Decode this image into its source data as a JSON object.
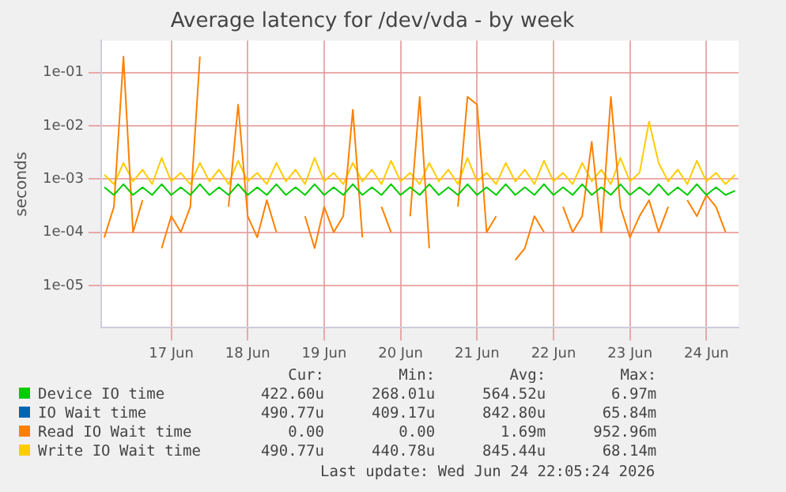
{
  "chart_data": {
    "type": "line",
    "title": "Average latency for /dev/vda - by week",
    "ylabel": "seconds",
    "x": [
      "2026-06-16T15:00",
      "2026-06-16T18:00",
      "2026-06-16T21:00",
      "2026-06-17T00:00",
      "2026-06-17T03:00",
      "2026-06-17T06:00",
      "2026-06-17T09:00",
      "2026-06-17T12:00",
      "2026-06-17T15:00",
      "2026-06-17T18:00",
      "2026-06-17T21:00",
      "2026-06-18T00:00",
      "2026-06-18T03:00",
      "2026-06-18T06:00",
      "2026-06-18T09:00",
      "2026-06-18T12:00",
      "2026-06-18T15:00",
      "2026-06-18T18:00",
      "2026-06-18T21:00",
      "2026-06-19T00:00",
      "2026-06-19T03:00",
      "2026-06-19T06:00",
      "2026-06-19T09:00",
      "2026-06-19T12:00",
      "2026-06-19T15:00",
      "2026-06-19T18:00",
      "2026-06-19T21:00",
      "2026-06-20T00:00",
      "2026-06-20T03:00",
      "2026-06-20T06:00",
      "2026-06-20T09:00",
      "2026-06-20T12:00",
      "2026-06-20T15:00",
      "2026-06-20T18:00",
      "2026-06-20T21:00",
      "2026-06-21T00:00",
      "2026-06-21T03:00",
      "2026-06-21T06:00",
      "2026-06-21T09:00",
      "2026-06-21T12:00",
      "2026-06-21T15:00",
      "2026-06-21T18:00",
      "2026-06-21T21:00",
      "2026-06-22T00:00",
      "2026-06-22T03:00",
      "2026-06-22T06:00",
      "2026-06-22T09:00",
      "2026-06-22T12:00",
      "2026-06-22T15:00",
      "2026-06-22T18:00",
      "2026-06-22T21:00",
      "2026-06-23T00:00",
      "2026-06-23T03:00",
      "2026-06-23T06:00",
      "2026-06-23T09:00",
      "2026-06-23T12:00",
      "2026-06-23T15:00",
      "2026-06-23T18:00",
      "2026-06-23T21:00",
      "2026-06-24T00:00",
      "2026-06-24T03:00",
      "2026-06-24T06:00",
      "2026-06-24T09:00",
      "2026-06-24T12:00",
      "2026-06-24T15:00",
      "2026-06-24T18:00",
      "2026-06-24T21:00"
    ],
    "series": [
      {
        "name": "Device IO time",
        "color": "#00cc00",
        "values": [
          0.0007,
          0.0005,
          0.0008,
          0.0005,
          0.0007,
          0.0005,
          0.0008,
          0.0005,
          0.0007,
          0.0005,
          0.0008,
          0.0005,
          0.0007,
          0.0005,
          0.0008,
          0.0005,
          0.0007,
          0.0005,
          0.0008,
          0.0005,
          0.0007,
          0.0005,
          0.0008,
          0.0005,
          0.0007,
          0.0005,
          0.0008,
          0.0005,
          0.0007,
          0.0005,
          0.0008,
          0.0005,
          0.0007,
          0.0005,
          0.0008,
          0.0005,
          0.0007,
          0.0005,
          0.0008,
          0.0005,
          0.0007,
          0.0005,
          0.0008,
          0.0005,
          0.0007,
          0.0005,
          0.0008,
          0.0005,
          0.0007,
          0.0005,
          0.0008,
          0.0005,
          0.0007,
          0.0005,
          0.0008,
          0.0005,
          0.0007,
          0.0005,
          0.0008,
          0.0005,
          0.0007,
          0.0005,
          0.0008,
          0.0005,
          0.0007,
          0.0005,
          0.0006
        ]
      },
      {
        "name": "IO Wait time",
        "color": "#0066b3",
        "values": [
          null,
          null,
          null,
          null,
          null,
          null,
          null,
          null,
          null,
          null,
          null,
          null,
          null,
          null,
          null,
          null,
          null,
          null,
          null,
          null,
          null,
          null,
          null,
          null,
          null,
          null,
          null,
          null,
          null,
          null,
          null,
          null,
          null,
          null,
          null,
          null,
          null,
          null,
          null,
          null,
          null,
          null,
          null,
          null,
          null,
          null,
          null,
          null,
          null,
          null,
          null,
          null,
          null,
          null,
          null,
          null,
          null,
          null,
          null,
          null,
          null,
          null,
          null,
          null,
          null,
          null,
          null
        ]
      },
      {
        "name": "Read IO Wait time",
        "color": "#ff8000",
        "values": [
          8e-05,
          0.0003,
          0.2,
          0.0001,
          0.0004,
          null,
          5e-05,
          0.0002,
          0.0001,
          0.0003,
          0.2,
          null,
          null,
          0.0003,
          0.025,
          0.0002,
          8e-05,
          0.0004,
          0.0001,
          null,
          null,
          0.0002,
          5e-05,
          0.0003,
          0.0001,
          0.0002,
          0.02,
          8e-05,
          null,
          0.0003,
          0.0001,
          null,
          0.0002,
          0.035,
          5e-05,
          null,
          null,
          0.0003,
          0.035,
          0.025,
          0.0001,
          0.0002,
          null,
          3e-05,
          5e-05,
          0.0002,
          0.0001,
          null,
          0.0003,
          0.0001,
          0.0002,
          0.005,
          0.0001,
          0.035,
          0.0003,
          8e-05,
          0.0002,
          0.0004,
          0.0001,
          0.0003,
          null,
          0.0004,
          0.0002,
          0.0005,
          0.0003,
          0.0001,
          null
        ]
      },
      {
        "name": "Write IO Wait time",
        "color": "#ffcc00",
        "values": [
          0.0012,
          0.0008,
          0.002,
          0.0009,
          0.0015,
          0.0008,
          0.0025,
          0.0009,
          0.0013,
          0.0008,
          0.002,
          0.0009,
          0.0015,
          0.0008,
          0.0022,
          0.0009,
          0.0013,
          0.0008,
          0.002,
          0.0009,
          0.0015,
          0.0008,
          0.0025,
          0.0009,
          0.0013,
          0.0008,
          0.002,
          0.0009,
          0.0015,
          0.0008,
          0.0022,
          0.0009,
          0.0013,
          0.0008,
          0.002,
          0.0009,
          0.0015,
          0.0008,
          0.0025,
          0.0009,
          0.0013,
          0.0008,
          0.002,
          0.0009,
          0.0015,
          0.0008,
          0.0022,
          0.0009,
          0.0013,
          0.0008,
          0.002,
          0.0009,
          0.0015,
          0.0008,
          0.0025,
          0.0009,
          0.0013,
          0.012,
          0.002,
          0.0009,
          0.0015,
          0.0008,
          0.0022,
          0.0009,
          0.0013,
          0.0008,
          0.0012
        ]
      }
    ],
    "log": "y",
    "xlim": [
      "2026-06-16T14:00",
      "2026-06-24T22:05"
    ],
    "xticks": [
      {
        "value": "2026-06-17T12:00",
        "label": "17 Jun"
      },
      {
        "value": "2026-06-18T12:00",
        "label": "18 Jun"
      },
      {
        "value": "2026-06-19T12:00",
        "label": "19 Jun"
      },
      {
        "value": "2026-06-20T12:00",
        "label": "20 Jun"
      },
      {
        "value": "2026-06-21T12:00",
        "label": "21 Jun"
      },
      {
        "value": "2026-06-22T12:00",
        "label": "22 Jun"
      },
      {
        "value": "2026-06-23T12:00",
        "label": "23 Jun"
      },
      {
        "value": "2026-06-24T12:00",
        "label": "24 Jun"
      }
    ],
    "ylim": [
      1.6e-06,
      0.4
    ],
    "yticks": [
      {
        "value": 1e-05,
        "label": "1e-05"
      },
      {
        "value": 0.0001,
        "label": "1e-04"
      },
      {
        "value": 0.001,
        "label": "1e-03"
      },
      {
        "value": 0.01,
        "label": "1e-02"
      },
      {
        "value": 0.1,
        "label": "1e-01"
      }
    ],
    "grid": true,
    "legend": "bottom",
    "annotations": [
      "Cur:",
      "Min:",
      "Avg:",
      "Max:",
      "422.60u",
      "268.01u",
      "564.52u",
      "6.97m",
      "490.77u",
      "409.17u",
      "842.80u",
      "65.84m",
      "0.00",
      "0.00",
      "1.69m",
      "952.96m",
      "490.77u",
      "440.78u",
      "845.44u",
      "68.14m",
      "Last update: Wed Jun 24 22:05:24 2026"
    ]
  }
}
